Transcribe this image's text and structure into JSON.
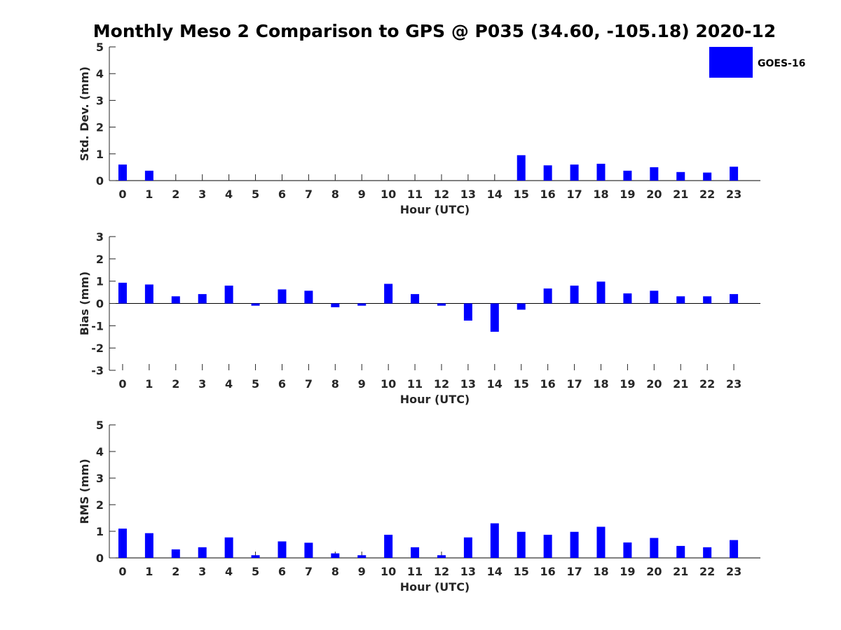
{
  "title": "Monthly Meso 2 Comparison to GPS @ P035 (34.60, -105.18) 2020-12",
  "legend": {
    "label": "GOES-16"
  },
  "colors": {
    "bar": "#0000ff",
    "axis": "#262626",
    "tick": "#262626"
  },
  "chart_data": [
    {
      "type": "bar",
      "title": "Monthly Meso 2 Comparison to GPS @ P035 (34.60, -105.18) 2020-12",
      "xlabel": "Hour (UTC)",
      "ylabel": "Std. Dev. (mm)",
      "ylim": [
        0,
        5
      ],
      "yticks": [
        0,
        1,
        2,
        3,
        4,
        5
      ],
      "categories": [
        "0",
        "1",
        "2",
        "3",
        "4",
        "5",
        "6",
        "7",
        "8",
        "9",
        "10",
        "11",
        "12",
        "13",
        "14",
        "15",
        "16",
        "17",
        "18",
        "19",
        "20",
        "21",
        "22",
        "23"
      ],
      "series": [
        {
          "name": "GOES-16",
          "values": [
            0.6,
            0.37,
            0,
            0,
            0,
            0,
            0,
            0,
            0,
            0,
            0,
            0,
            0,
            0,
            0,
            0.95,
            0.57,
            0.6,
            0.63,
            0.37,
            0.5,
            0.32,
            0.3,
            0.52
          ]
        }
      ]
    },
    {
      "type": "bar",
      "xlabel": "Hour (UTC)",
      "ylabel": "Bias (mm)",
      "ylim": [
        -3,
        3
      ],
      "yticks": [
        -3,
        -2,
        -1,
        0,
        1,
        2,
        3
      ],
      "categories": [
        "0",
        "1",
        "2",
        "3",
        "4",
        "5",
        "6",
        "7",
        "8",
        "9",
        "10",
        "11",
        "12",
        "13",
        "14",
        "15",
        "16",
        "17",
        "18",
        "19",
        "20",
        "21",
        "22",
        "23"
      ],
      "series": [
        {
          "name": "GOES-16",
          "values": [
            0.93,
            0.85,
            0.32,
            0.42,
            0.8,
            -0.1,
            0.63,
            0.57,
            -0.17,
            -0.1,
            0.88,
            0.42,
            -0.1,
            -0.77,
            -1.27,
            -0.28,
            0.67,
            0.8,
            0.98,
            0.45,
            0.57,
            0.32,
            0.32,
            0.42
          ]
        }
      ]
    },
    {
      "type": "bar",
      "xlabel": "Hour (UTC)",
      "ylabel": "RMS (mm)",
      "ylim": [
        0,
        5
      ],
      "yticks": [
        0,
        1,
        2,
        3,
        4,
        5
      ],
      "categories": [
        "0",
        "1",
        "2",
        "3",
        "4",
        "5",
        "6",
        "7",
        "8",
        "9",
        "10",
        "11",
        "12",
        "13",
        "14",
        "15",
        "16",
        "17",
        "18",
        "19",
        "20",
        "21",
        "22",
        "23"
      ],
      "series": [
        {
          "name": "GOES-16",
          "values": [
            1.1,
            0.93,
            0.32,
            0.4,
            0.77,
            0.1,
            0.62,
            0.57,
            0.17,
            0.1,
            0.87,
            0.4,
            0.1,
            0.77,
            1.3,
            0.98,
            0.87,
            0.98,
            1.17,
            0.58,
            0.75,
            0.45,
            0.4,
            0.67
          ]
        }
      ]
    }
  ]
}
